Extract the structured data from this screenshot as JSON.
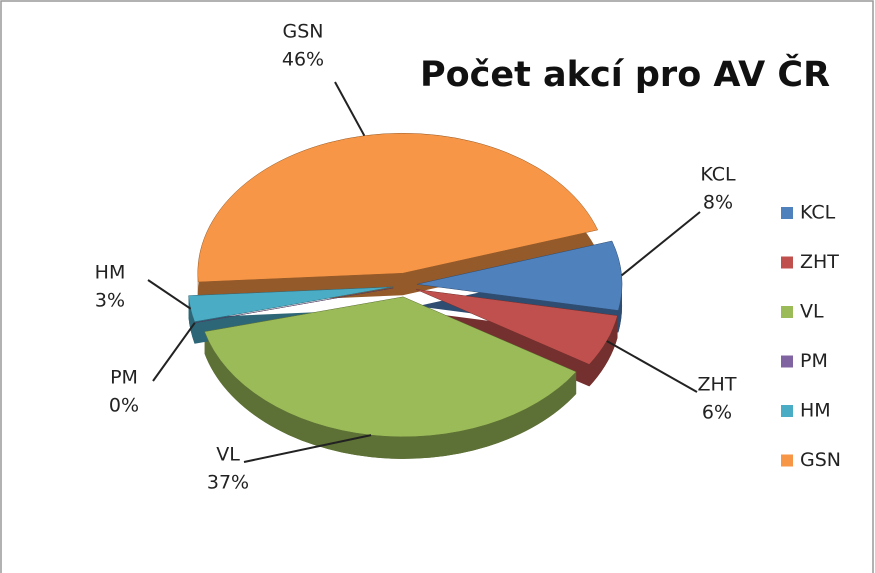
{
  "chart_data": {
    "type": "pie",
    "title": "Počet akcí pro AV ČR",
    "categories": [
      "KCL",
      "ZHT",
      "VL",
      "PM",
      "HM",
      "GSN"
    ],
    "values": [
      8,
      6,
      37,
      0,
      3,
      46
    ],
    "value_labels": [
      "8%",
      "6%",
      "37%",
      "0%",
      "3%",
      "46%"
    ],
    "colors": [
      "#4f81bd",
      "#c0504d",
      "#9bbb59",
      "#8064a2",
      "#4bacc6",
      "#f79646"
    ],
    "legend": "right"
  }
}
